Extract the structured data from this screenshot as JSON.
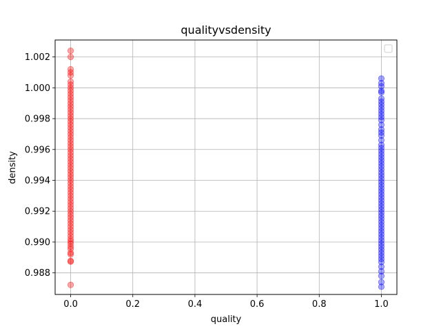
{
  "chart_data": {
    "type": "scatter",
    "title": "qualityvsdensity",
    "xlabel": "quality",
    "ylabel": "density",
    "xlim": [
      -0.05,
      1.05
    ],
    "ylim": [
      0.9866,
      1.0031
    ],
    "grid": true,
    "legend": {
      "placement": "top-right",
      "entries": []
    },
    "x_ticks": [
      {
        "value": 0.0,
        "label": "0.0"
      },
      {
        "value": 0.2,
        "label": "0.2"
      },
      {
        "value": 0.4,
        "label": "0.4"
      },
      {
        "value": 0.6,
        "label": "0.6"
      },
      {
        "value": 0.8,
        "label": "0.8"
      },
      {
        "value": 1.0,
        "label": "1.0"
      }
    ],
    "y_ticks": [
      {
        "value": 0.988,
        "label": "0.988"
      },
      {
        "value": 0.99,
        "label": "0.990"
      },
      {
        "value": 0.992,
        "label": "0.992"
      },
      {
        "value": 0.994,
        "label": "0.994"
      },
      {
        "value": 0.996,
        "label": "0.996"
      },
      {
        "value": 0.998,
        "label": "0.998"
      },
      {
        "value": 1.0,
        "label": "1.000"
      },
      {
        "value": 1.002,
        "label": "1.002"
      }
    ],
    "series": [
      {
        "color": "#ff0000",
        "opacity": 0.35,
        "x": 0,
        "y": [
          0.98722,
          0.98873,
          0.98878,
          0.9892,
          0.9893,
          0.98955,
          0.9897,
          0.9899,
          0.99005,
          0.9902,
          0.9904,
          0.9906,
          0.9908,
          0.991,
          0.9912,
          0.9914,
          0.9916,
          0.9918,
          0.992,
          0.9922,
          0.9924,
          0.9926,
          0.9928,
          0.993,
          0.9932,
          0.9934,
          0.9936,
          0.9938,
          0.994,
          0.9942,
          0.9944,
          0.9946,
          0.9948,
          0.995,
          0.9952,
          0.9954,
          0.9956,
          0.9958,
          0.996,
          0.9962,
          0.9964,
          0.9966,
          0.9968,
          0.997,
          0.9972,
          0.9974,
          0.9976,
          0.9978,
          0.998,
          0.9982,
          0.9984,
          0.9986,
          0.9988,
          0.999,
          0.9992,
          0.9994,
          0.9996,
          0.9998,
          1.0,
          1.0002,
          1.0004,
          1.0008,
          1.001,
          1.0012,
          1.002,
          1.0024
        ]
      },
      {
        "color": "#0000ff",
        "opacity": 0.35,
        "x": 1,
        "y": [
          0.9871,
          0.9874,
          0.9878,
          0.9881,
          0.9884,
          0.9887,
          0.9889,
          0.9891,
          0.9893,
          0.9895,
          0.9897,
          0.9899,
          0.9901,
          0.9903,
          0.9905,
          0.9907,
          0.9909,
          0.9911,
          0.9913,
          0.9915,
          0.9917,
          0.9919,
          0.9921,
          0.9923,
          0.9925,
          0.9927,
          0.9929,
          0.9931,
          0.9933,
          0.9935,
          0.9937,
          0.9939,
          0.9941,
          0.9943,
          0.9945,
          0.9947,
          0.9949,
          0.9951,
          0.9953,
          0.9955,
          0.9957,
          0.9959,
          0.9961,
          0.9963,
          0.9966,
          0.9969,
          0.9971,
          0.9973,
          0.9976,
          0.9979,
          0.9981,
          0.9983,
          0.9985,
          0.9987,
          0.9989,
          0.9991,
          0.9993,
          0.9997,
          0.9998,
          1.0001,
          1.0003,
          1.0006
        ]
      }
    ]
  }
}
